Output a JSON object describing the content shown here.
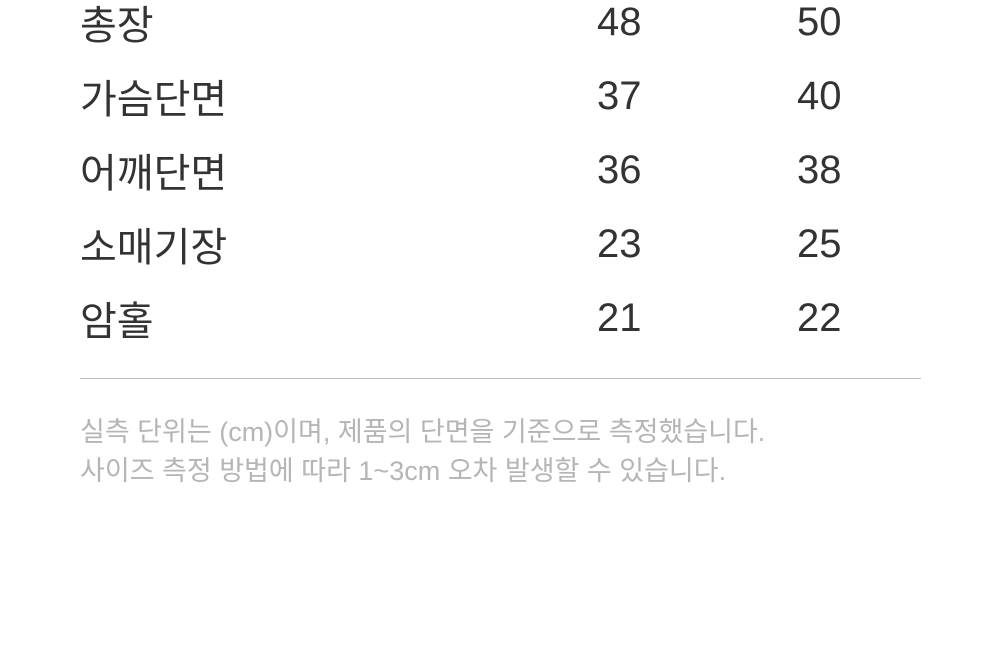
{
  "size_table": {
    "rows": [
      {
        "label": "총장",
        "size1": "48",
        "size2": "50"
      },
      {
        "label": "가슴단면",
        "size1": "37",
        "size2": "40"
      },
      {
        "label": "어깨단면",
        "size1": "36",
        "size2": "38"
      },
      {
        "label": "소매기장",
        "size1": "23",
        "size2": "25"
      },
      {
        "label": "암홀",
        "size1": "21",
        "size2": "22"
      }
    ]
  },
  "footer": {
    "line1": "실측 단위는 (cm)이며, 제품의 단면을 기준으로 측정했습니다.",
    "line2": "사이즈 측정 방법에 따라 1~3cm 오차 발생할 수 있습니다."
  },
  "colors": {
    "text": "#333333",
    "muted_text": "#b5b5b5",
    "divider": "#c0c0c0",
    "background": "#ffffff"
  }
}
